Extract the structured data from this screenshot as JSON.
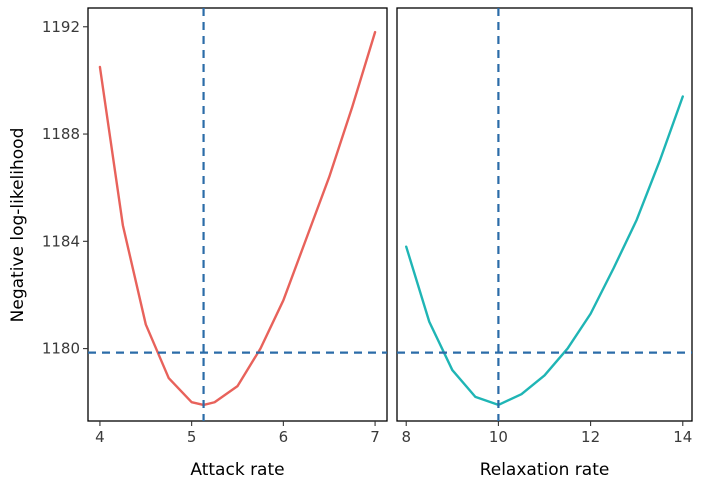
{
  "chart_data": {
    "type": "line",
    "ylabel": "Negative log-likelihood",
    "ylim": [
      1177.3,
      1192.7
    ],
    "yticks": [
      1180,
      1184,
      1188,
      1192
    ],
    "hline": 1179.85,
    "grid": false,
    "legend": "none",
    "panels": [
      {
        "xlabel": "Attack rate",
        "xlim": [
          3.87,
          7.13
        ],
        "xticks": [
          4,
          5,
          6,
          7
        ],
        "vline": 5.13,
        "color": "#E8625B",
        "series": {
          "x": [
            4.0,
            4.25,
            4.5,
            4.75,
            5.0,
            5.13,
            5.25,
            5.5,
            5.75,
            6.0,
            6.25,
            6.5,
            6.75,
            7.0
          ],
          "y": [
            1190.5,
            1184.6,
            1180.9,
            1178.9,
            1178.0,
            1177.9,
            1178.0,
            1178.6,
            1180.0,
            1181.8,
            1184.1,
            1186.4,
            1189.0,
            1191.8
          ]
        }
      },
      {
        "xlabel": "Relaxation rate",
        "xlim": [
          7.8,
          14.2
        ],
        "xticks": [
          8,
          10,
          12,
          14
        ],
        "vline": 10.0,
        "color": "#1FB5B5",
        "series": {
          "x": [
            8.0,
            8.5,
            9.0,
            9.5,
            10.0,
            10.5,
            11.0,
            11.5,
            12.0,
            12.5,
            13.0,
            13.5,
            14.0
          ],
          "y": [
            1183.8,
            1181.0,
            1179.2,
            1178.2,
            1177.9,
            1178.3,
            1179.0,
            1180.0,
            1181.3,
            1183.0,
            1184.8,
            1187.0,
            1189.4
          ]
        }
      }
    ]
  }
}
